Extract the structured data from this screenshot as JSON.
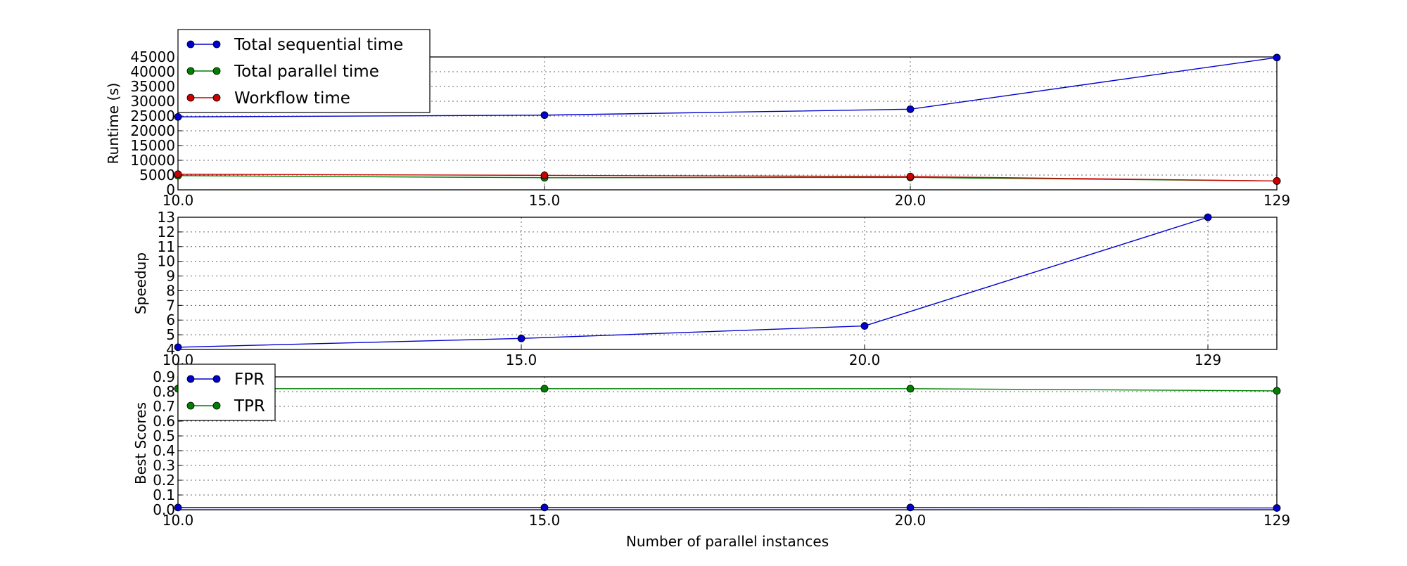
{
  "chart_data": [
    {
      "type": "line",
      "xlabel": "",
      "ylabel": "Runtime (s)",
      "categories": [
        "10.0",
        "15.0",
        "20.0",
        "129"
      ],
      "ylim": [
        0,
        45000
      ],
      "yticks": [
        0,
        5000,
        10000,
        15000,
        20000,
        25000,
        30000,
        35000,
        40000,
        45000
      ],
      "grid": true,
      "legend_position": "top-left",
      "series": [
        {
          "name": "Total sequential time",
          "color": "#0000cc",
          "values": [
            24700,
            25300,
            27300,
            44800
          ]
        },
        {
          "name": "Total parallel time",
          "color": "#007f00",
          "values": [
            4800,
            4100,
            4200,
            3000
          ]
        },
        {
          "name": "Workflow time",
          "color": "#cc0000",
          "values": [
            5300,
            4900,
            4500,
            3000
          ]
        }
      ]
    },
    {
      "type": "line",
      "xlabel": "",
      "ylabel": "Speedup",
      "categories": [
        "10.0",
        "15.0",
        "20.0",
        "129"
      ],
      "ylim": [
        4,
        13
      ],
      "yticks": [
        4,
        5,
        6,
        7,
        8,
        9,
        10,
        11,
        12,
        13
      ],
      "grid": true,
      "series": [
        {
          "name": "",
          "color": "#0000cc",
          "values": [
            4.15,
            4.75,
            5.6,
            13.0
          ]
        }
      ]
    },
    {
      "type": "line",
      "xlabel": "Number of parallel instances",
      "ylabel": "Best Scores",
      "categories": [
        "10.0",
        "15.0",
        "20.0",
        "129"
      ],
      "ylim": [
        0,
        0.9
      ],
      "yticks": [
        "0.0",
        "0.1",
        "0.2",
        "0.3",
        "0.4",
        "0.5",
        "0.6",
        "0.7",
        "0.8",
        "0.9"
      ],
      "grid": true,
      "legend_position": "top-left",
      "series": [
        {
          "name": "FPR",
          "color": "#0000cc",
          "values": [
            0.015,
            0.015,
            0.015,
            0.012
          ]
        },
        {
          "name": "TPR",
          "color": "#007f00",
          "values": [
            0.82,
            0.82,
            0.82,
            0.805
          ]
        }
      ]
    }
  ]
}
